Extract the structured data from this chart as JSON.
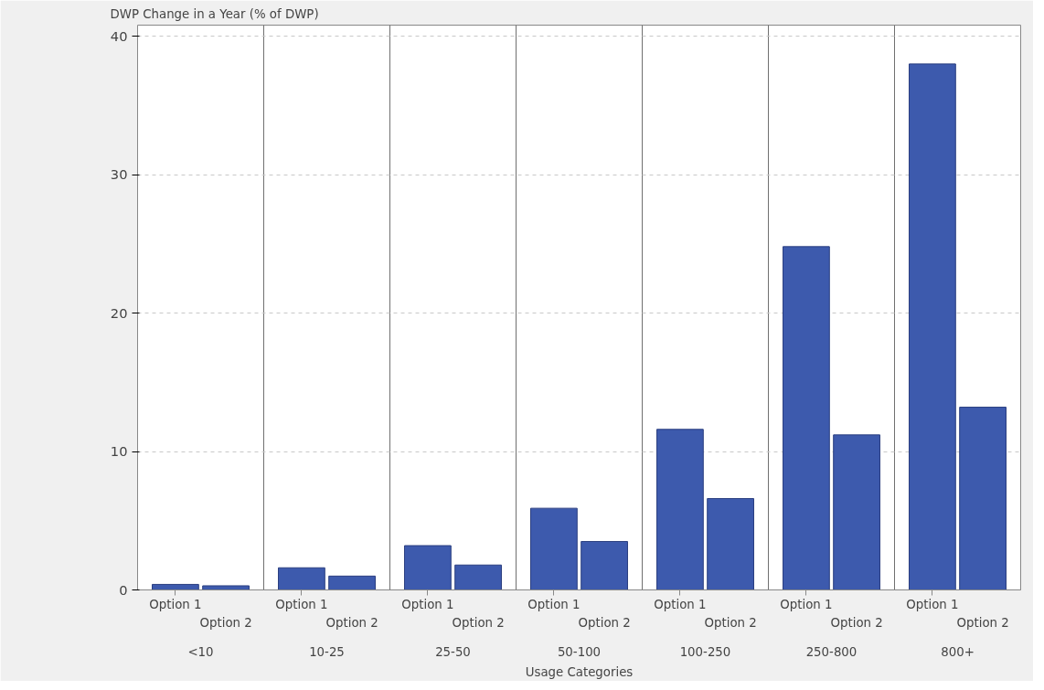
{
  "chart_data": {
    "type": "bar",
    "ylabel": "DWP Change in a Year (% of DWP)",
    "xlabel": "Usage Categories",
    "categories": [
      "<10",
      "10-25",
      "25-50",
      "50-100",
      "100-250",
      "250-800",
      "800+"
    ],
    "series": [
      {
        "name": "Option 1",
        "color": "#3d5aad",
        "values": [
          0.4,
          1.6,
          3.2,
          5.9,
          11.6,
          24.8,
          38.0
        ]
      },
      {
        "name": "Option 2",
        "color": "#3d5aad",
        "values": [
          0.3,
          1.0,
          1.8,
          3.5,
          6.6,
          11.2,
          13.2
        ]
      }
    ],
    "ylim": [
      0,
      40.8
    ],
    "yticks": [
      0,
      10,
      20,
      30,
      40
    ],
    "grid": "y"
  }
}
